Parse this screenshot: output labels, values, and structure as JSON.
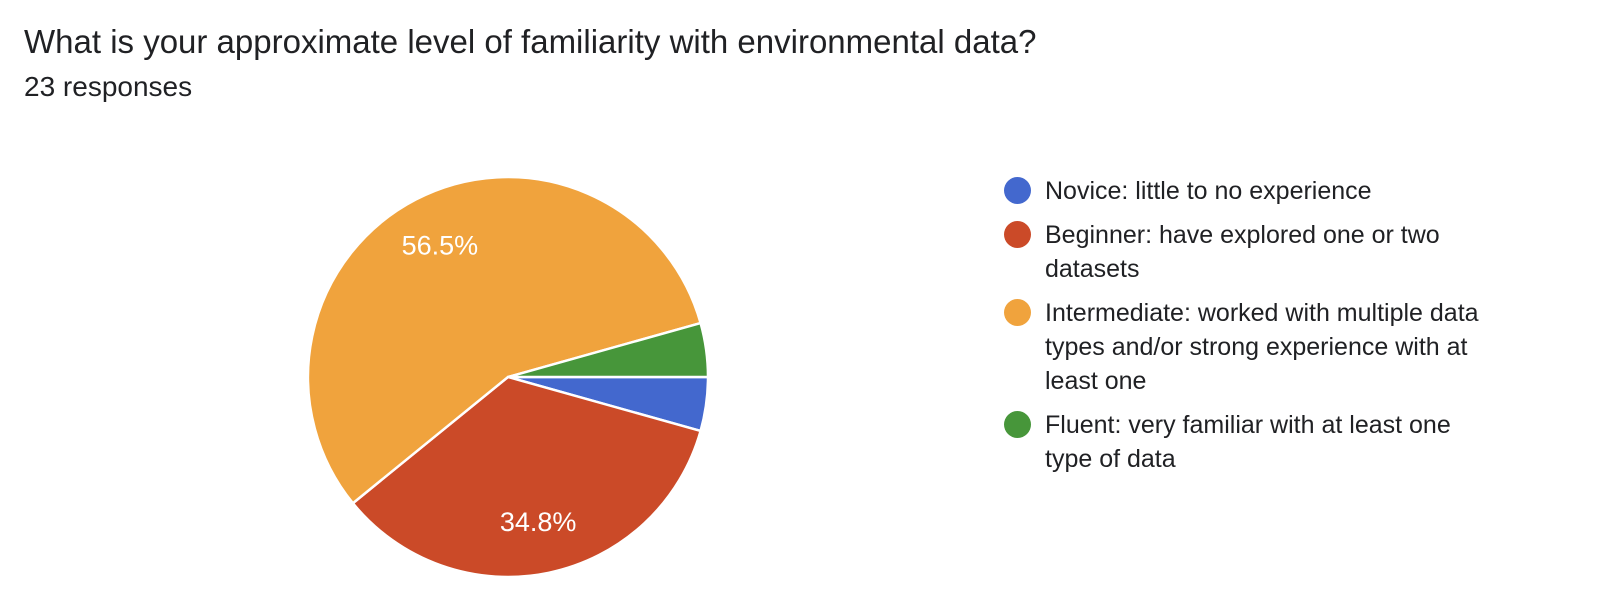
{
  "header": {
    "title": "What is your approximate level of familiarity with environmental data?",
    "responses_count": "23 responses"
  },
  "chart_data": {
    "type": "pie",
    "title": "What is your approximate level of familiarity with environmental data?",
    "subtitle": "23 responses",
    "total_responses": 23,
    "legend_position": "right",
    "direction": "clockwise",
    "start_angle_deg": 0,
    "background": "#ffffff",
    "label_color": "#ffffff",
    "slices": [
      {
        "key": "novice",
        "label": "Novice: little to no experience",
        "value": 1,
        "percent": 4.3,
        "percent_label": "",
        "color": "#4368CE"
      },
      {
        "key": "beginner",
        "label": "Beginner: have explored one or two datasets",
        "value": 8,
        "percent": 34.8,
        "percent_label": "34.8%",
        "color": "#CB4A28"
      },
      {
        "key": "intermediate",
        "label": "Intermediate: worked with multiple data types and/or strong experience with at least one",
        "value": 13,
        "percent": 56.5,
        "percent_label": "56.5%",
        "color": "#F0A33D"
      },
      {
        "key": "fluent",
        "label": "Fluent: very familiar with at least one type of data",
        "value": 1,
        "percent": 4.3,
        "percent_label": "",
        "color": "#47963A"
      }
    ]
  }
}
